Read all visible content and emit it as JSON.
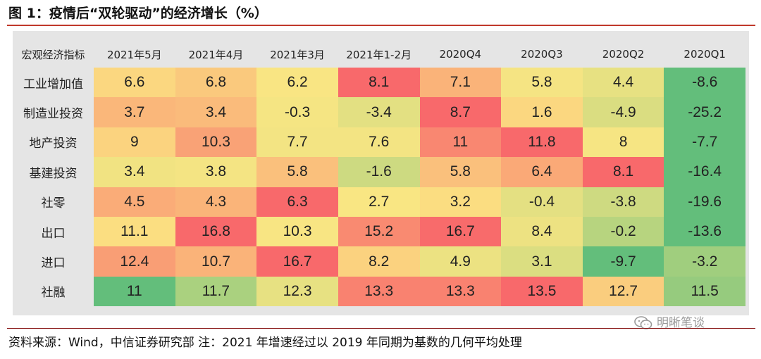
{
  "title": "图 1：疫情后“双轮驱动”的经济增长（%）",
  "footer": "资料来源：Wind，中信证券研究部 注：2021 年增速经过以 2019 年同期为基数的几何平均处理",
  "watermark": "明晰笔谈",
  "colors": {
    "title_rule": "#c0392b",
    "low": "#63be7b",
    "mid": "#fbe683",
    "high": "#f8696b",
    "panel": "#e5e5e5"
  },
  "chart_data": {
    "type": "heatmap",
    "corner_label": "宏观经济指标",
    "columns": [
      "2021年5月",
      "2021年4月",
      "2021年3月",
      "2021年1-2月",
      "2020Q4",
      "2020Q3",
      "2020Q2",
      "2020Q1"
    ],
    "rows": [
      {
        "label": "工业增加值",
        "values": [
          6.6,
          6.8,
          6.2,
          8.1,
          7.1,
          5.8,
          4.4,
          -8.6
        ]
      },
      {
        "label": "制造业投资",
        "values": [
          3.7,
          3.4,
          -0.3,
          -3.4,
          8.7,
          1.6,
          -4.9,
          -25.2
        ]
      },
      {
        "label": "地产投资",
        "values": [
          9,
          10.3,
          7.7,
          7.6,
          11,
          11.8,
          8,
          -7.7
        ]
      },
      {
        "label": "基建投资",
        "values": [
          3.4,
          3.8,
          5.8,
          -1.6,
          5.8,
          6.4,
          8.1,
          -16.4
        ]
      },
      {
        "label": "社零",
        "values": [
          4.5,
          4.3,
          6.3,
          2.7,
          3.2,
          -0.4,
          -3.8,
          -19.6
        ]
      },
      {
        "label": "出口",
        "values": [
          11.1,
          16.8,
          10.3,
          15.2,
          16.7,
          8.4,
          -0.2,
          -13.6
        ]
      },
      {
        "label": "进口",
        "values": [
          12.4,
          10.7,
          16.7,
          8.2,
          4.9,
          3.1,
          -9.7,
          -3.2
        ]
      },
      {
        "label": "社融",
        "values": [
          11,
          11.7,
          12.3,
          13.3,
          13.3,
          13.5,
          12.7,
          11.5
        ]
      }
    ],
    "color_scale": "per-row red (max) – yellow (median) – green (min)"
  }
}
